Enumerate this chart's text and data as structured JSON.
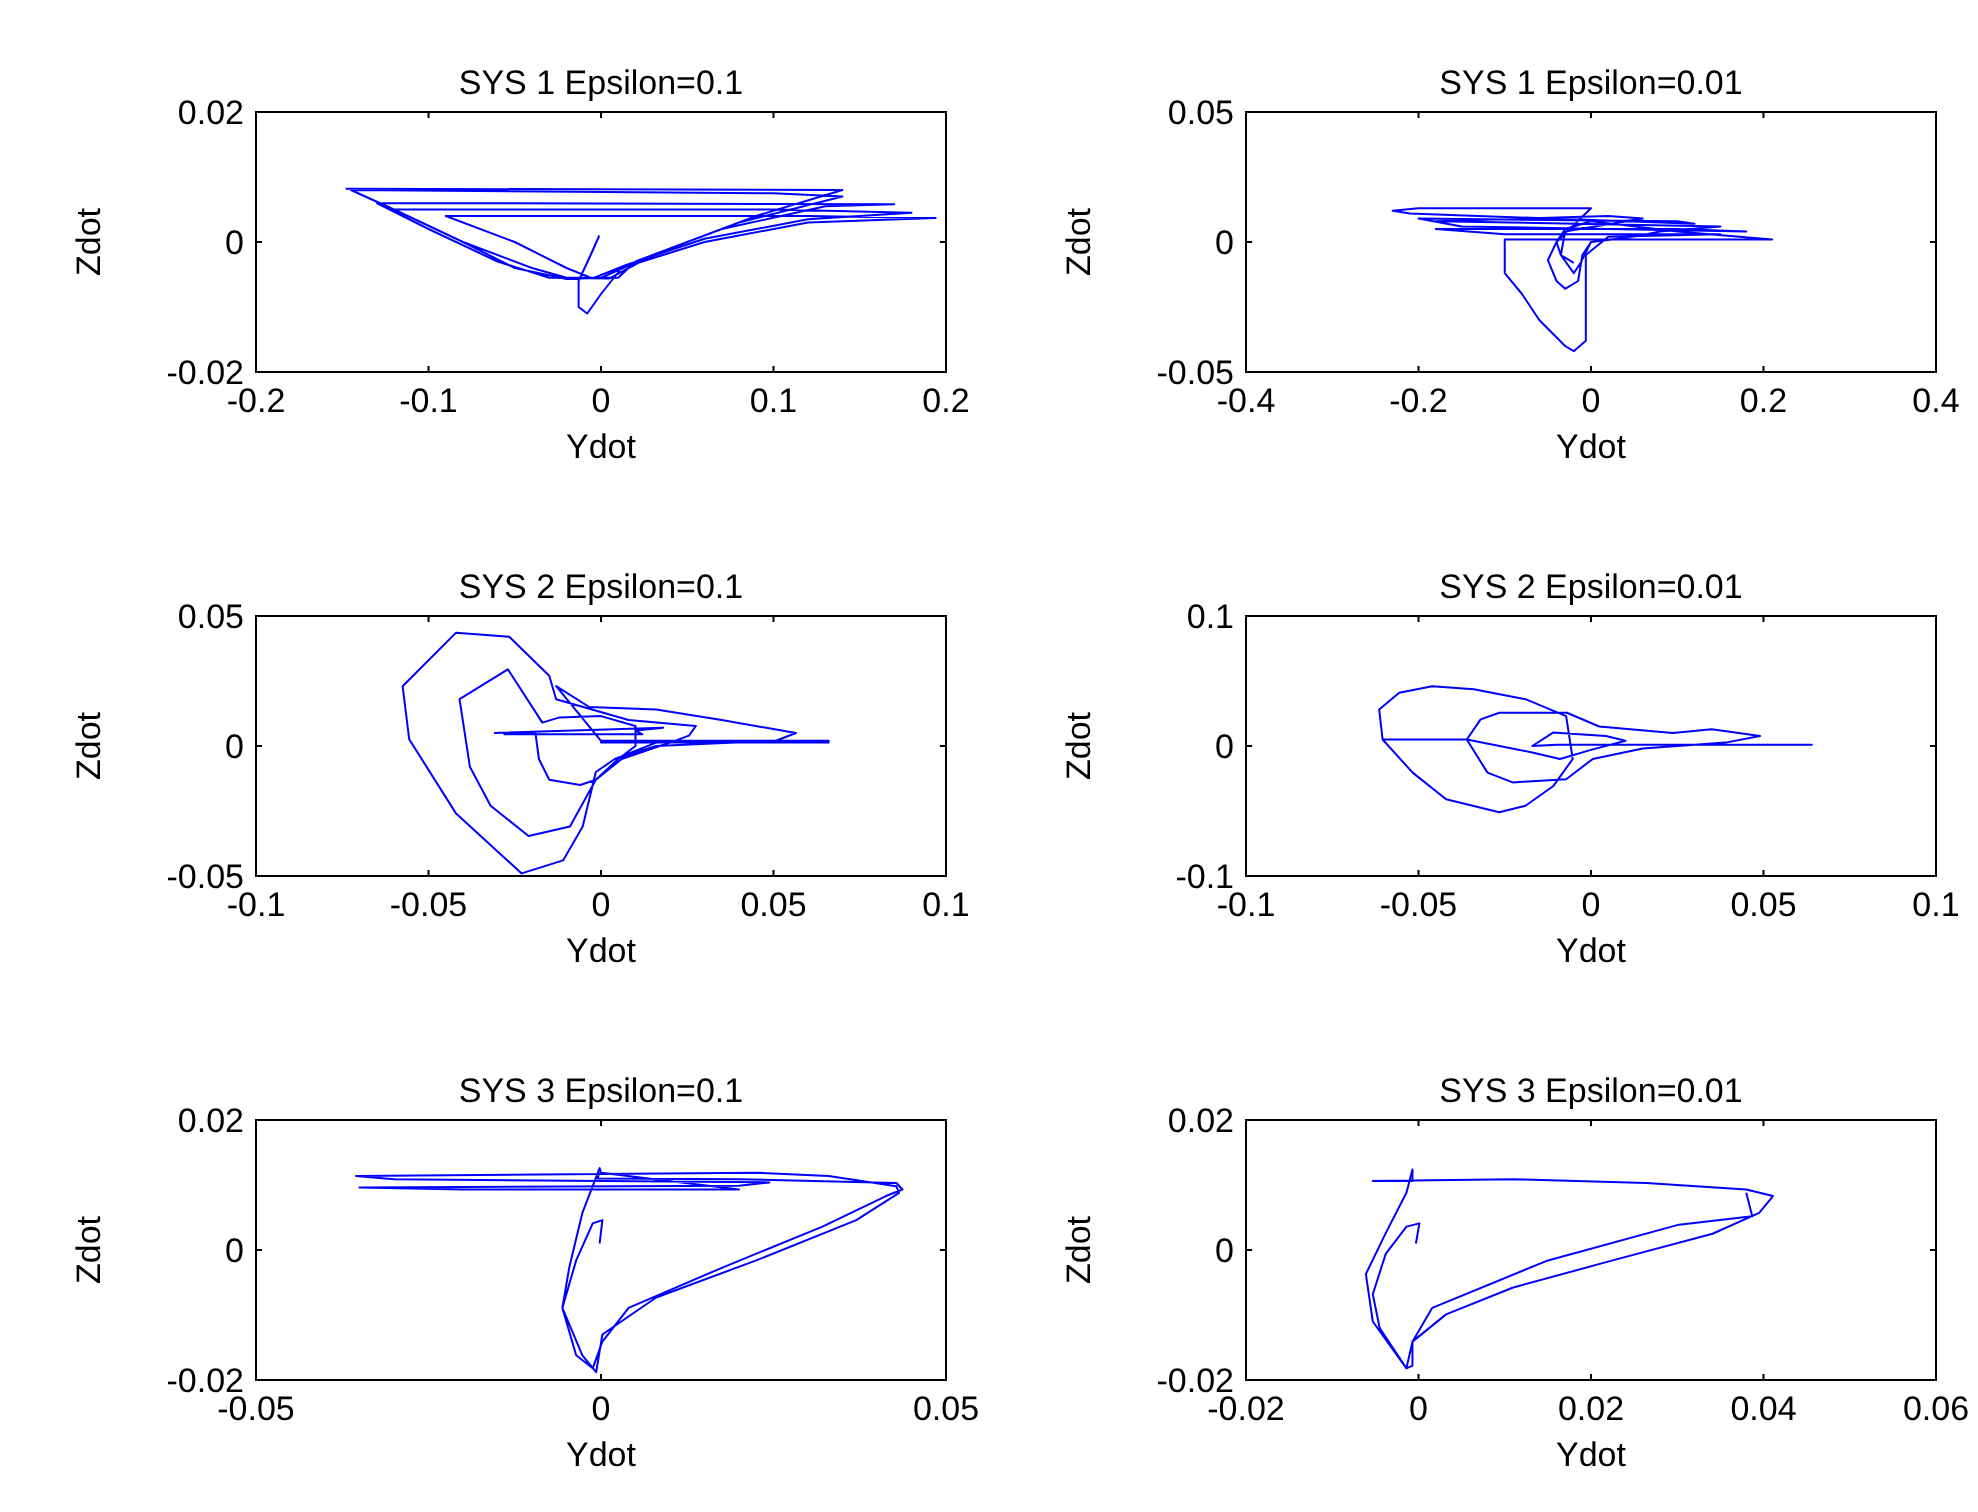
{
  "chart_data": [
    {
      "type": "line",
      "title": "SYS 1 Epsilon=0.1",
      "xlabel": "Ydot",
      "ylabel": "Zdot",
      "xlim": [
        -0.2,
        0.2
      ],
      "ylim": [
        -0.02,
        0.02
      ],
      "xticks": [
        -0.2,
        -0.1,
        0,
        0.1,
        0.2
      ],
      "yticks": [
        -0.02,
        0,
        0.02
      ],
      "series": [
        {
          "color": "#0000ff",
          "x": [
            -0.001,
            -0.006,
            -0.013,
            -0.013,
            -0.008,
            0.0,
            0.012,
            0.06,
            0.12,
            0.194,
            0.12,
            -0.09,
            -0.05,
            -0.02,
            -0.005,
            0.015,
            0.06,
            0.12,
            0.18,
            0.1,
            -0.12,
            -0.08,
            -0.04,
            -0.02,
            0.01,
            0.02,
            0.07,
            0.13,
            0.17,
            -0.13,
            -0.1,
            -0.06,
            -0.03,
            0.005,
            0.03,
            0.08,
            0.14,
            0.1,
            -0.145,
            -0.12,
            -0.08,
            -0.05,
            -0.02,
            0.0,
            0.03,
            0.09,
            0.14,
            -0.148
          ],
          "values": [
            0.001,
            -0.002,
            -0.006,
            -0.01,
            -0.011,
            -0.008,
            -0.004,
            0.0,
            0.003,
            0.0037,
            0.004,
            0.004,
            0.0,
            -0.004,
            -0.0056,
            -0.0035,
            0.0005,
            0.0035,
            0.0045,
            0.005,
            0.005,
            0.0,
            -0.004,
            -0.0055,
            -0.0055,
            -0.003,
            0.002,
            0.0055,
            0.0058,
            0.006,
            0.002,
            -0.003,
            -0.0055,
            -0.0056,
            -0.002,
            0.003,
            0.007,
            0.0075,
            0.008,
            0.005,
            0.0,
            -0.004,
            -0.0057,
            -0.0055,
            -0.002,
            0.004,
            0.008,
            0.0082
          ]
        }
      ]
    },
    {
      "type": "line",
      "title": "SYS 1 Epsilon=0.01",
      "xlabel": "Ydot",
      "ylabel": "Zdot",
      "xlim": [
        -0.4,
        0.4
      ],
      "ylim": [
        -0.05,
        0.05
      ],
      "xticks": [
        -0.4,
        -0.2,
        0,
        0.2,
        0.4
      ],
      "yticks": [
        -0.05,
        0,
        0.05
      ],
      "series": [
        {
          "color": "#0000ff",
          "x": [
            -0.02,
            -0.035,
            -0.04,
            -0.03,
            0.0,
            0.1,
            0.21,
            0.05,
            -0.1,
            -0.1,
            -0.08,
            -0.06,
            -0.03,
            -0.02,
            -0.006,
            -0.006,
            0.02,
            0.15,
            -0.1,
            -0.18,
            0.1,
            0.18,
            -0.15,
            -0.2,
            0.1,
            0.12,
            -0.21,
            -0.23,
            -0.2,
            0.0,
            -0.04,
            -0.05,
            -0.04,
            -0.03,
            -0.015,
            -0.01,
            0.0,
            0.05,
            0.08,
            0.15,
            -0.18,
            0.02,
            0.06,
            -0.03,
            -0.035,
            -0.02,
            -0.012,
            0.0
          ],
          "values": [
            -0.008,
            -0.005,
            0.0,
            0.005,
            0.008,
            0.004,
            0.001,
            0.001,
            0.001,
            -0.012,
            -0.02,
            -0.03,
            -0.04,
            -0.042,
            -0.038,
            -0.005,
            0.002,
            0.003,
            0.003,
            0.005,
            0.005,
            0.004,
            0.006,
            0.009,
            0.008,
            0.007,
            0.011,
            0.012,
            0.013,
            0.013,
            0.0,
            -0.007,
            -0.015,
            -0.018,
            -0.015,
            -0.005,
            0.0,
            0.002,
            0.004,
            0.006,
            0.008,
            0.01,
            0.009,
            0.004,
            -0.005,
            -0.012,
            -0.008,
            0.0
          ]
        }
      ]
    },
    {
      "type": "line",
      "title": "SYS 2 Epsilon=0.1",
      "xlabel": "Ydot",
      "ylabel": "Zdot",
      "xlim": [
        -0.1,
        0.1
      ],
      "ylim": [
        -0.05,
        0.05
      ],
      "xticks": [
        -0.1,
        -0.05,
        0,
        0.05,
        0.1
      ],
      "yticks": [
        -0.05,
        0,
        0.05
      ],
      "series": [
        {
          "color": "#0000ff",
          "x": [
            -0.031,
            0.018,
            0.01,
            0.012,
            -0.028,
            -0.019,
            -0.018,
            -0.015,
            -0.006,
            -0.0015,
            0.005,
            0.01,
            0.01,
            0.0,
            -0.012,
            -0.017,
            -0.027,
            -0.041,
            -0.038,
            -0.032,
            -0.021,
            -0.009,
            -0.0015,
            0.006,
            0.02,
            0.0255,
            0.0275,
            0.008,
            -0.013,
            -0.015,
            -0.0266,
            -0.042,
            -0.0575,
            -0.0556,
            -0.042,
            -0.023,
            -0.011,
            -0.0053,
            -0.0015,
            0.004,
            0.016,
            0.066,
            0.0,
            0.016,
            0.066,
            0.016,
            0.0,
            -0.013,
            -0.0034,
            0.016,
            0.035,
            0.0565,
            0.0507,
            0.016,
            0.004
          ],
          "values": [
            0.005,
            0.007,
            0.006,
            0.0045,
            0.0045,
            0.005,
            -0.005,
            -0.013,
            -0.015,
            -0.013,
            -0.005,
            0.0,
            0.0077,
            0.0115,
            0.011,
            0.009,
            0.0295,
            0.018,
            -0.008,
            -0.023,
            -0.0346,
            -0.031,
            -0.013,
            -0.005,
            0.0013,
            0.004,
            0.0077,
            0.01,
            0.018,
            0.027,
            0.042,
            0.0436,
            0.023,
            0.0026,
            -0.026,
            -0.049,
            -0.044,
            -0.031,
            -0.01,
            -0.005,
            0.0013,
            0.0013,
            0.0013,
            0.002,
            0.002,
            0.002,
            0.002,
            0.023,
            0.015,
            0.014,
            0.01,
            0.005,
            0.002,
            0.0,
            -0.005
          ]
        }
      ]
    },
    {
      "type": "line",
      "title": "SYS 2 Epsilon=0.01",
      "xlabel": "Ydot",
      "ylabel": "Zdot",
      "xlim": [
        -0.1,
        0.1
      ],
      "ylim": [
        -0.1,
        0.1
      ],
      "xticks": [
        -0.1,
        -0.05,
        0,
        0.05,
        0.1
      ],
      "yticks": [
        -0.1,
        0,
        0.1
      ],
      "series": [
        {
          "color": "#0000ff",
          "x": [
            -0.01,
            0.064,
            -0.01,
            -0.017,
            -0.011,
            0.0043,
            0.01,
            0.0,
            -0.009,
            -0.017,
            -0.036,
            -0.032,
            -0.0266,
            -0.007,
            0.0024,
            0.0237,
            0.035,
            0.049,
            0.039,
            0.015,
            0.0005,
            -0.0072,
            -0.0227,
            -0.03,
            -0.036,
            -0.0604,
            -0.0614,
            -0.0556,
            -0.046,
            -0.034,
            -0.019,
            -0.0072,
            -0.0053,
            -0.011,
            -0.019,
            -0.0266,
            -0.042,
            -0.0517,
            -0.0604
          ],
          "values": [
            0.001,
            0.001,
            0.001,
            0.0,
            0.0103,
            0.0077,
            0.004,
            -0.003,
            -0.01,
            -0.005,
            0.005,
            0.0205,
            0.0256,
            0.0256,
            0.015,
            0.01,
            0.0128,
            0.0077,
            0.0026,
            -0.002,
            -0.01,
            -0.0256,
            -0.028,
            -0.0205,
            0.005,
            0.005,
            0.028,
            0.041,
            0.046,
            0.0436,
            0.036,
            0.023,
            -0.01,
            -0.031,
            -0.046,
            -0.051,
            -0.041,
            -0.0205,
            0.005
          ]
        }
      ]
    },
    {
      "type": "line",
      "title": "SYS 3 Epsilon=0.1",
      "xlabel": "Ydot",
      "ylabel": "Zdot",
      "xlim": [
        -0.05,
        0.05
      ],
      "ylim": [
        -0.02,
        0.02
      ],
      "xticks": [
        -0.05,
        0,
        0.05
      ],
      "yticks": [
        -0.02,
        0,
        0.02
      ],
      "series": [
        {
          "color": "#0000ff",
          "x": [
            -0.0002,
            0.0002,
            -0.0012,
            -0.0036,
            -0.0056,
            -0.0027,
            -0.0007,
            0.0002,
            0.008,
            0.0225,
            0.037,
            0.0432,
            0.0428,
            0.033,
            0.0225,
            -0.0355,
            -0.03,
            0.0244,
            0.02,
            -0.035,
            -0.02,
            0.02,
            0.0,
            -0.0002,
            -0.0027,
            -0.0046,
            -0.0056,
            -0.0036,
            -0.0012,
            0.0002,
            0.004,
            0.0176,
            0.0321,
            0.0413,
            0.0437,
            0.0428,
            0.02,
            -0.0005,
            -0.0002
          ],
          "values": [
            0.001,
            0.0046,
            0.0041,
            -0.0016,
            -0.0089,
            -0.0162,
            -0.0188,
            -0.013,
            -0.0073,
            -0.0016,
            0.0046,
            0.0088,
            0.0098,
            0.0114,
            0.0119,
            0.0114,
            0.0109,
            0.0104,
            0.0099,
            0.0096,
            0.0093,
            0.0093,
            0.0119,
            0.0126,
            0.0057,
            -0.0027,
            -0.0089,
            -0.0162,
            -0.0182,
            -0.0141,
            -0.0089,
            -0.0027,
            0.0036,
            0.0083,
            0.0093,
            0.0103,
            0.0109,
            0.011,
            0.0119
          ]
        }
      ]
    },
    {
      "type": "line",
      "title": "SYS 3 Epsilon=0.01",
      "xlabel": "Ydot",
      "ylabel": "Zdot",
      "xlim": [
        -0.02,
        0.06
      ],
      "ylim": [
        -0.02,
        0.02
      ],
      "xticks": [
        -0.02,
        0,
        0.02,
        0.04,
        0.06
      ],
      "yticks": [
        -0.02,
        0,
        0.02
      ],
      "series": [
        {
          "color": "#0000ff",
          "x": [
            -0.0003,
            0.0001,
            -0.0014,
            -0.0038,
            -0.0053,
            -0.0045,
            -0.0014,
            -0.0007,
            -0.0007,
            0.0032,
            0.0109,
            0.0225,
            0.0341,
            0.0395,
            0.0411,
            0.038,
            0.0264,
            0.0109,
            -0.0053,
            -0.0007,
            -0.0007,
            -0.0014,
            -0.0038,
            -0.0061,
            -0.0053,
            -0.0014,
            -0.0007,
            0.0016,
            0.0148,
            0.0302,
            0.0387,
            0.038
          ],
          "values": [
            0.001,
            0.0041,
            0.0036,
            -0.0006,
            -0.0068,
            -0.012,
            -0.0182,
            -0.0178,
            -0.0141,
            -0.0099,
            -0.0058,
            -0.0016,
            0.0025,
            0.0057,
            0.0083,
            0.0093,
            0.0103,
            0.0109,
            0.0106,
            0.0106,
            0.0124,
            0.0088,
            0.0026,
            -0.0037,
            -0.011,
            -0.0182,
            -0.0141,
            -0.0089,
            -0.0017,
            0.0039,
            0.0052,
            0.0088
          ]
        }
      ]
    }
  ]
}
